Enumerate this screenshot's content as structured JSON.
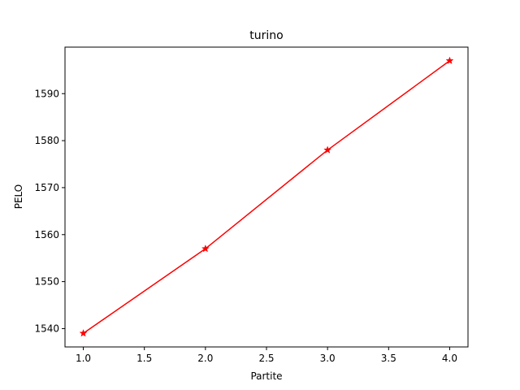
{
  "chart_data": {
    "type": "line",
    "title": "turino",
    "xlabel": "Partite",
    "ylabel": "PELO",
    "x": [
      1.0,
      2.0,
      3.0,
      4.0
    ],
    "series": [
      {
        "values": [
          1539,
          1557,
          1578,
          1597
        ],
        "color": "#ff0000",
        "marker": "star"
      }
    ],
    "xlim": [
      0.85,
      4.15
    ],
    "ylim": [
      1536.1,
      1599.9
    ],
    "xticks": [
      1.0,
      1.5,
      2.0,
      2.5,
      3.0,
      3.5,
      4.0
    ],
    "xtick_labels": [
      "1.0",
      "1.5",
      "2.0",
      "2.5",
      "3.0",
      "3.5",
      "4.0"
    ],
    "yticks": [
      1540,
      1550,
      1560,
      1570,
      1580,
      1590
    ],
    "ytick_labels": [
      "1540",
      "1550",
      "1560",
      "1570",
      "1580",
      "1590"
    ],
    "grid": false,
    "legend": "none"
  }
}
